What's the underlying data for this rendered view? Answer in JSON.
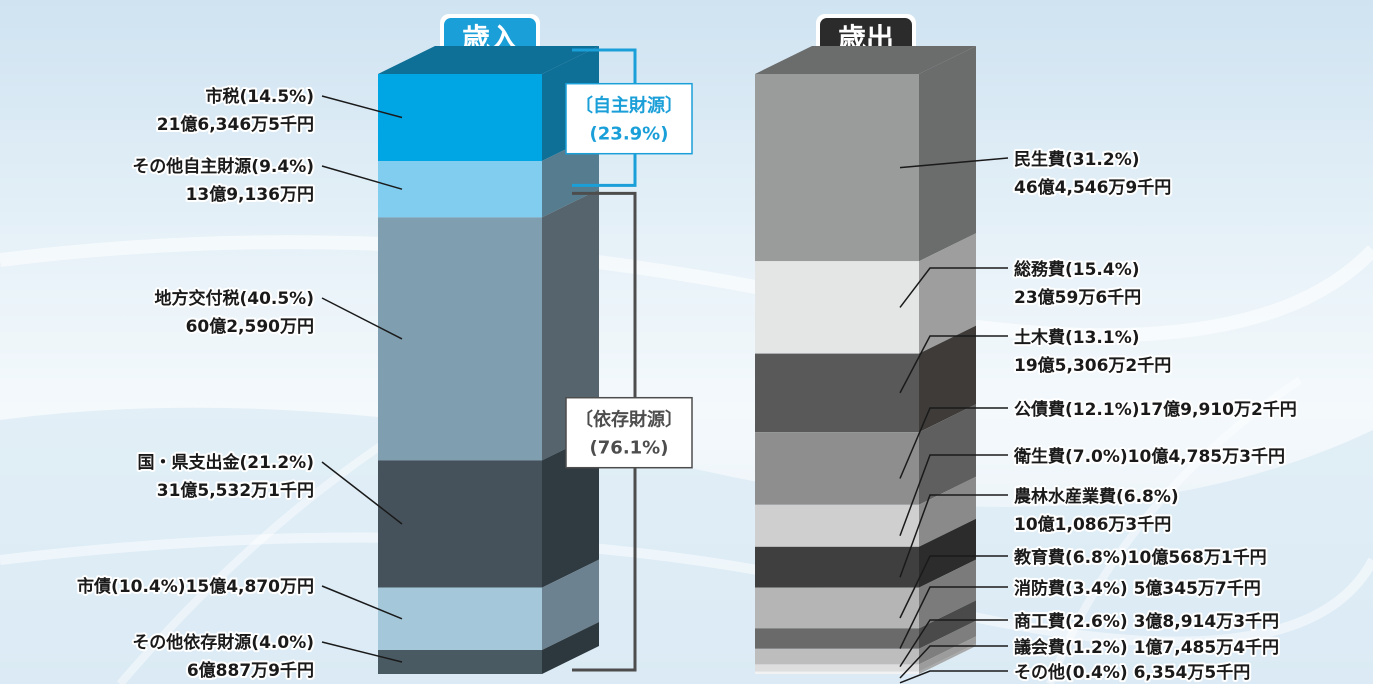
{
  "chart_data": [
    {
      "type": "bar",
      "stacked": true,
      "title": "歳入",
      "segments": [
        {
          "label": "市税(14.5%)",
          "amount": "21億6,346万5千円",
          "percent": 14.5,
          "color": "#00a5e3",
          "side": "#0e6f97"
        },
        {
          "label": "その他自主財源(9.4%)",
          "amount": "13億9,136万円",
          "percent": 9.4,
          "color": "#80cdef",
          "side": "#567d8f"
        },
        {
          "label": "地方交付税(40.5%)",
          "amount": "60億2,590万円",
          "percent": 40.5,
          "color": "#7f9fb0",
          "side": "#56656d"
        },
        {
          "label": "国・県支出金(21.2%)",
          "amount": "31億5,532万1千円",
          "percent": 21.2,
          "color": "#45525b",
          "side": "#2f3a41"
        },
        {
          "label": "市債(10.4%)15億4,870万円",
          "amount": "",
          "percent": 10.4,
          "color": "#a4c8da",
          "side": "#6d8290"
        },
        {
          "label": "その他依存財源(4.0%)",
          "amount": "6億887万9千円",
          "percent": 4.0,
          "color": "#4a5a63",
          "side": "#2d383e"
        }
      ],
      "groups": [
        {
          "label": "〔自主財源〕",
          "percent_text": "(23.9%)",
          "percent": 23.9,
          "color": "#1a9fd8"
        },
        {
          "label": "〔依存財源〕",
          "percent_text": "(76.1%)",
          "percent": 76.1,
          "color": "#4d4d4d"
        }
      ]
    },
    {
      "type": "bar",
      "stacked": true,
      "title": "歳出",
      "segments": [
        {
          "label": "民生費(31.2%)",
          "amount": "46億4,546万9千円",
          "percent": 31.2,
          "color": "#9a9b9b",
          "side": "#6b6c6c"
        },
        {
          "label": "総務費(15.4%)",
          "amount": "23億59万6千円",
          "percent": 15.4,
          "color": "#e4e6e6",
          "side": "#9e9e9e"
        },
        {
          "label": "土木費(13.1%)",
          "amount": "19億5,306万2千円",
          "percent": 13.1,
          "color": "#595959",
          "side": "#3e3b39"
        },
        {
          "label": "公債費(12.1%)17億9,910万2千円",
          "amount": "",
          "percent": 12.1,
          "color": "#8e8e8e",
          "side": "#5f5f5f"
        },
        {
          "label": "衛生費(7.0%)10億4,785万3千円",
          "amount": "",
          "percent": 7.0,
          "color": "#cfcfcf",
          "side": "#8a8a8a"
        },
        {
          "label": "農林水産業費(6.8%)",
          "amount": "10億1,086万3千円",
          "percent": 6.8,
          "color": "#3f3f3f",
          "side": "#2c2c2c"
        },
        {
          "label": "教育費(6.8%)10億568万1千円",
          "amount": "",
          "percent": 6.8,
          "color": "#b5b5b5",
          "side": "#7b7b7b"
        },
        {
          "label": "消防費(3.4%) 5億345万7千円",
          "amount": "",
          "percent": 3.4,
          "color": "#6a6a6a",
          "side": "#4a4a4a"
        },
        {
          "label": "商工費(2.6%) 3億8,914万3千円",
          "amount": "",
          "percent": 2.6,
          "color": "#bdbdbd",
          "side": "#7e7e7e"
        },
        {
          "label": "議会費(1.2%) 1億7,485万4千円",
          "amount": "",
          "percent": 1.2,
          "color": "#dedede",
          "side": "#9c9c9c"
        },
        {
          "label": "その他(0.4%) 6,354万5千円",
          "amount": "",
          "percent": 0.4,
          "color": "#f2f2f2",
          "side": "#a8a8a8"
        }
      ]
    }
  ],
  "colors": {
    "revenue_badge": "#1a9fd8",
    "expenditure_badge": "#2b2b2b",
    "leader_line": "#1a1a1a"
  }
}
